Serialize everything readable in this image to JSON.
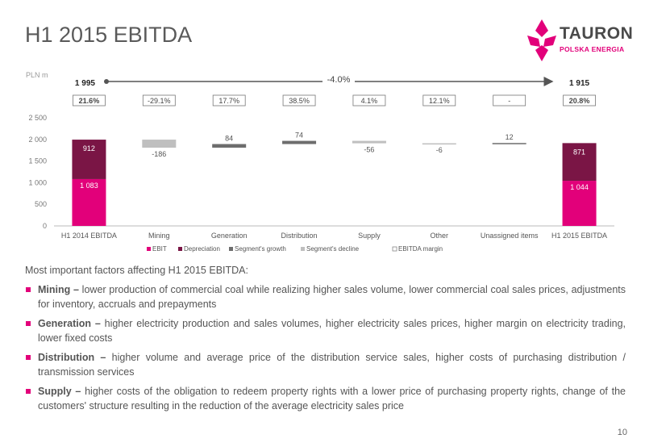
{
  "title": "H1 2015 EBITDA",
  "logo": {
    "name": "TAURON",
    "subtitle": "POLSKA ENERGIA"
  },
  "colors": {
    "ebit": "#e2007a",
    "depreciation": "#7a1545",
    "growth": "#6d6d6d",
    "decline": "#bfbfbf",
    "margin_box": "#777777"
  },
  "chart_data": {
    "type": "bar",
    "subtype": "waterfall",
    "unit": "PLN m",
    "ylim": [
      0,
      2500
    ],
    "yticks": [
      "0",
      "500",
      "1 000",
      "1 500",
      "2 000",
      "2 500"
    ],
    "ytick_values": [
      0,
      500,
      1000,
      1500,
      2000,
      2500
    ],
    "categories": [
      "H1 2014 EBITDA",
      "Mining",
      "Generation",
      "Distribution",
      "Supply",
      "Other",
      "Unassigned items",
      "H1 2015 EBITDA"
    ],
    "totals": [
      {
        "category": "H1 2014 EBITDA",
        "ebit": 1083,
        "ebit_label": "1 083",
        "depreciation": 912,
        "depreciation_label": "912",
        "total_label": "1 995"
      },
      {
        "category": "H1 2015 EBITDA",
        "ebit": 1044,
        "ebit_label": "1 044",
        "depreciation": 871,
        "depreciation_label": "871",
        "total_label": "1 915"
      }
    ],
    "changes": [
      {
        "category": "Mining",
        "value": -186,
        "label": "-186"
      },
      {
        "category": "Generation",
        "value": 84,
        "label": "84"
      },
      {
        "category": "Distribution",
        "value": 74,
        "label": "74"
      },
      {
        "category": "Supply",
        "value": -56,
        "label": "-56"
      },
      {
        "category": "Other",
        "value": -6,
        "label": "-6"
      },
      {
        "category": "Unassigned items",
        "value": 12,
        "label": "12"
      }
    ],
    "margins": [
      "21.6%",
      "-29.1%",
      "17.7%",
      "38.5%",
      "4.1%",
      "12.1%",
      "-",
      "20.8%"
    ],
    "overall_change": "-4.0%",
    "legend": [
      "EBIT",
      "Depreciation",
      "Segment's growth",
      "Segment's decline",
      "EBITDA margin"
    ],
    "legend_position": "bottom",
    "grid": false
  },
  "factors": {
    "intro": "Most important factors affecting H1 2015 EBITDA:",
    "items": [
      {
        "head": "Mining –",
        "text": " lower production of commercial coal while realizing higher sales volume, lower commercial coal sales prices, adjustments for inventory, accruals and prepayments"
      },
      {
        "head": "Generation –",
        "text": " higher electricity production and sales volumes, higher electricity sales prices, higher margin on electricity trading, lower fixed costs"
      },
      {
        "head": "Distribution –",
        "text": " higher volume and average price of the distribution service sales, higher costs of purchasing distribution / transmission services"
      },
      {
        "head": "Supply –",
        "text": " higher costs of the obligation to redeem property rights with a lower price of purchasing property rights, change of the customers' structure resulting in the reduction of the average electricity sales price"
      }
    ]
  },
  "page_number": "10"
}
